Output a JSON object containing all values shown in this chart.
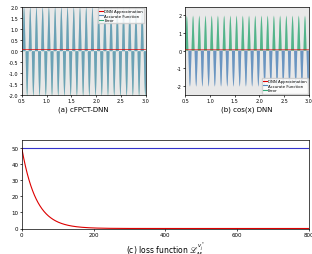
{
  "subplot_a_title": "(a) cFPCT-DNN",
  "subplot_b_title": "(b) cos(x) DNN",
  "subplot_c_title": "(c) loss function $\\mathscr{L}_{M}^{v_j^*}$",
  "x_range": [
    0.5,
    3.0
  ],
  "n_points": 2000,
  "freq_a": 50,
  "freq_b": 50,
  "amp_accurate_a": 2.0,
  "amp_accurate_b": 2.0,
  "amp_error_a": 1.8,
  "amp_error_b": 2.2,
  "ylim_a": [
    -2.0,
    2.0
  ],
  "ylim_b": [
    -2.5,
    2.5
  ],
  "yticks_a": [
    -2.0,
    -1.5,
    -1.0,
    -0.5,
    0.0,
    0.5,
    1.0,
    1.5,
    2.0
  ],
  "ytick_labels_a": [
    "-2.0",
    "-1.5",
    "-1.0",
    "-0.5",
    "0.0",
    "0.5",
    "1.0",
    "1.5",
    "2.0"
  ],
  "yticks_b": [
    -2.0,
    -1.0,
    0.0,
    1.0,
    2.0
  ],
  "ytick_labels_b": [
    "-2",
    "-1",
    "0",
    "1",
    "2"
  ],
  "xticks_ab": [
    0.5,
    1.0,
    1.5,
    2.0,
    2.5,
    3.0
  ],
  "xtick_labels_ab": [
    "0.5",
    "1.0",
    "1.5",
    "2.0",
    "2.5",
    "3.0"
  ],
  "loss_epochs": 800,
  "loss_init": 50,
  "loss_decay": 0.025,
  "loss_flat": 50,
  "legend_labels": [
    "DNN Approximation",
    "Accurate Function",
    "Error"
  ],
  "color_dnn": "#dd0000",
  "color_accurate": "#5588bb",
  "color_error": "#33aa77",
  "color_loss_red": "#dd0000",
  "color_loss_blue": "#3333cc",
  "loss_yticks": [
    0,
    10,
    20,
    30,
    40,
    50
  ],
  "loss_xticks": [
    0,
    200,
    400,
    600,
    800
  ],
  "plot_bg": "#e8e8e8"
}
